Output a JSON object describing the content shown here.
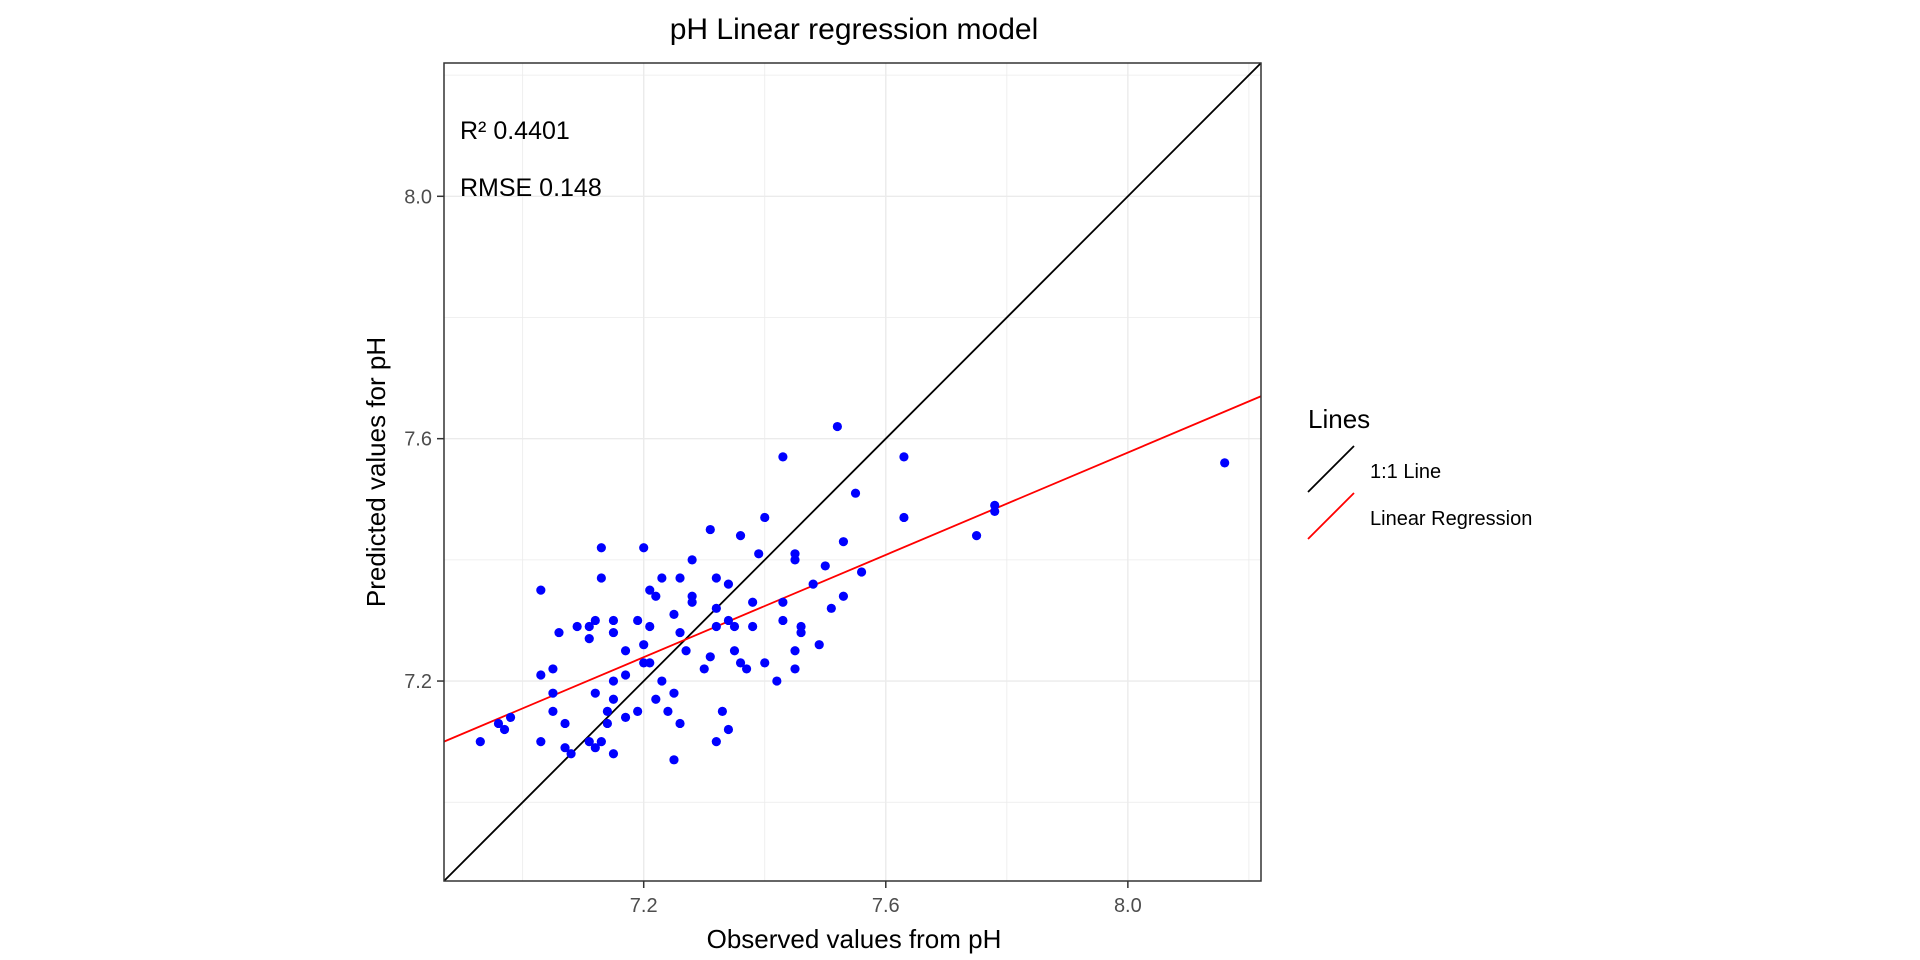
{
  "chart_data": {
    "type": "scatter",
    "title": "pH  Linear regression model",
    "xlabel": "Observed values from pH",
    "ylabel": "Predicted values for pH",
    "xlim": [
      6.87,
      8.22
    ],
    "ylim": [
      6.87,
      8.22
    ],
    "xticks": [
      7.2,
      7.6,
      8.0
    ],
    "yticks": [
      7.2,
      7.6,
      8.0
    ],
    "xtick_labels": [
      "7.2",
      "7.6",
      "8.0"
    ],
    "ytick_labels": [
      "7.2",
      "7.6",
      "8.0"
    ],
    "grid": true,
    "annotations": {
      "r2": "R²  0.4401",
      "rmse": "RMSE 0.148"
    },
    "legend": {
      "title": "Lines",
      "placement": "right",
      "items": [
        {
          "label": "1:1 Line",
          "color": "#000000"
        },
        {
          "label": "Linear Regression",
          "color": "#ff0000"
        }
      ]
    },
    "point_color": "#0000ff",
    "lines": [
      {
        "name": "1:1 Line",
        "color": "#000000",
        "x": [
          6.87,
          8.22
        ],
        "y": [
          6.87,
          8.22
        ]
      },
      {
        "name": "Linear Regression",
        "color": "#ff0000",
        "x": [
          6.87,
          8.22
        ],
        "y": [
          7.1,
          7.67
        ]
      }
    ],
    "points": [
      [
        6.93,
        7.1
      ],
      [
        6.96,
        7.13
      ],
      [
        6.97,
        7.12
      ],
      [
        6.98,
        7.14
      ],
      [
        7.03,
        7.35
      ],
      [
        7.03,
        7.21
      ],
      [
        7.03,
        7.1
      ],
      [
        7.05,
        7.22
      ],
      [
        7.05,
        7.18
      ],
      [
        7.05,
        7.15
      ],
      [
        7.06,
        7.28
      ],
      [
        7.07,
        7.13
      ],
      [
        7.07,
        7.09
      ],
      [
        7.08,
        7.08
      ],
      [
        7.09,
        7.29
      ],
      [
        7.11,
        7.29
      ],
      [
        7.11,
        7.27
      ],
      [
        7.11,
        7.1
      ],
      [
        7.12,
        7.3
      ],
      [
        7.12,
        7.09
      ],
      [
        7.12,
        7.18
      ],
      [
        7.13,
        7.1
      ],
      [
        7.13,
        7.42
      ],
      [
        7.13,
        7.37
      ],
      [
        7.14,
        7.13
      ],
      [
        7.14,
        7.15
      ],
      [
        7.15,
        7.3
      ],
      [
        7.15,
        7.28
      ],
      [
        7.15,
        7.2
      ],
      [
        7.15,
        7.17
      ],
      [
        7.15,
        7.08
      ],
      [
        7.17,
        7.25
      ],
      [
        7.17,
        7.21
      ],
      [
        7.17,
        7.14
      ],
      [
        7.19,
        7.3
      ],
      [
        7.19,
        7.15
      ],
      [
        7.2,
        7.42
      ],
      [
        7.2,
        7.26
      ],
      [
        7.2,
        7.23
      ],
      [
        7.21,
        7.35
      ],
      [
        7.21,
        7.29
      ],
      [
        7.21,
        7.23
      ],
      [
        7.22,
        7.34
      ],
      [
        7.22,
        7.17
      ],
      [
        7.23,
        7.37
      ],
      [
        7.23,
        7.2
      ],
      [
        7.24,
        7.15
      ],
      [
        7.25,
        7.31
      ],
      [
        7.25,
        7.18
      ],
      [
        7.25,
        7.07
      ],
      [
        7.26,
        7.37
      ],
      [
        7.26,
        7.28
      ],
      [
        7.26,
        7.13
      ],
      [
        7.27,
        7.25
      ],
      [
        7.28,
        7.34
      ],
      [
        7.28,
        7.33
      ],
      [
        7.28,
        7.4
      ],
      [
        7.3,
        7.22
      ],
      [
        7.31,
        7.45
      ],
      [
        7.31,
        7.24
      ],
      [
        7.32,
        7.37
      ],
      [
        7.32,
        7.32
      ],
      [
        7.32,
        7.29
      ],
      [
        7.32,
        7.1
      ],
      [
        7.33,
        7.15
      ],
      [
        7.34,
        7.36
      ],
      [
        7.34,
        7.3
      ],
      [
        7.34,
        7.12
      ],
      [
        7.35,
        7.29
      ],
      [
        7.35,
        7.25
      ],
      [
        7.36,
        7.44
      ],
      [
        7.36,
        7.23
      ],
      [
        7.37,
        7.22
      ],
      [
        7.38,
        7.33
      ],
      [
        7.38,
        7.29
      ],
      [
        7.39,
        7.41
      ],
      [
        7.4,
        7.47
      ],
      [
        7.4,
        7.23
      ],
      [
        7.42,
        7.2
      ],
      [
        7.43,
        7.57
      ],
      [
        7.43,
        7.33
      ],
      [
        7.43,
        7.3
      ],
      [
        7.45,
        7.41
      ],
      [
        7.45,
        7.4
      ],
      [
        7.45,
        7.25
      ],
      [
        7.45,
        7.22
      ],
      [
        7.46,
        7.29
      ],
      [
        7.46,
        7.28
      ],
      [
        7.48,
        7.36
      ],
      [
        7.49,
        7.26
      ],
      [
        7.5,
        7.39
      ],
      [
        7.51,
        7.32
      ],
      [
        7.52,
        7.62
      ],
      [
        7.53,
        7.43
      ],
      [
        7.53,
        7.34
      ],
      [
        7.55,
        7.51
      ],
      [
        7.56,
        7.38
      ],
      [
        7.63,
        7.57
      ],
      [
        7.63,
        7.47
      ],
      [
        7.75,
        7.44
      ],
      [
        7.78,
        7.49
      ],
      [
        7.78,
        7.48
      ],
      [
        8.16,
        7.56
      ]
    ]
  }
}
